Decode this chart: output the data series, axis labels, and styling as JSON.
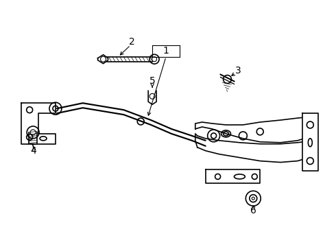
{
  "background_color": "#ffffff",
  "line_color": "#000000",
  "line_width": 1.2,
  "fig_width": 4.9,
  "fig_height": 3.6,
  "dpi": 100,
  "label_fontsize": 10
}
